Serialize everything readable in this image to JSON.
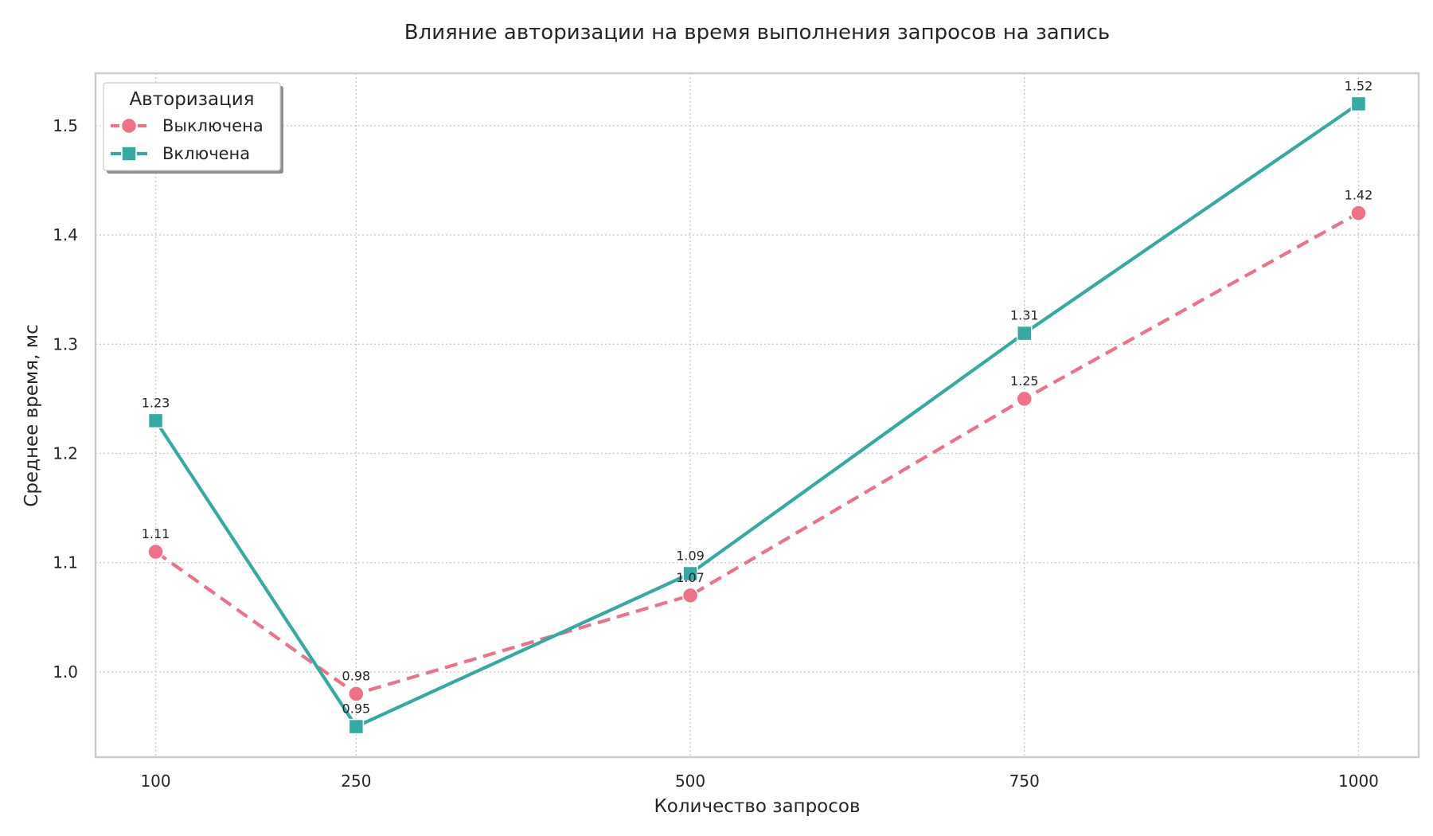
{
  "chart_data": {
    "type": "line",
    "title": "Влияние авторизации на время выполнения запросов на запись",
    "xlabel": "Количество запросов",
    "ylabel": "Среднее время, мс",
    "x": [
      100,
      250,
      500,
      750,
      1000
    ],
    "x_tick_labels": [
      "100",
      "250",
      "500",
      "750",
      "1000"
    ],
    "xlim": [
      55,
      1045
    ],
    "ylim": [
      0.922,
      1.548
    ],
    "y_ticks": [
      1.0,
      1.1,
      1.2,
      1.3,
      1.4,
      1.5
    ],
    "y_tick_labels": [
      "1.0",
      "1.1",
      "1.2",
      "1.3",
      "1.4",
      "1.5"
    ],
    "grid": true,
    "legend": {
      "title": "Авторизация",
      "placement": "top-left"
    },
    "series": [
      {
        "name": "Выключена",
        "values": [
          1.11,
          0.98,
          1.07,
          1.25,
          1.42
        ],
        "value_labels": [
          "1.11",
          "0.98",
          "1.07",
          "1.25",
          "1.42"
        ],
        "color": "#f07088",
        "line_style": "dashed",
        "marker": "circle"
      },
      {
        "name": "Включена",
        "values": [
          1.23,
          0.95,
          1.09,
          1.31,
          1.52
        ],
        "value_labels": [
          "1.23",
          "0.95",
          "1.09",
          "1.31",
          "1.52"
        ],
        "color": "#35aaa3",
        "line_style": "solid",
        "marker": "square"
      }
    ]
  }
}
